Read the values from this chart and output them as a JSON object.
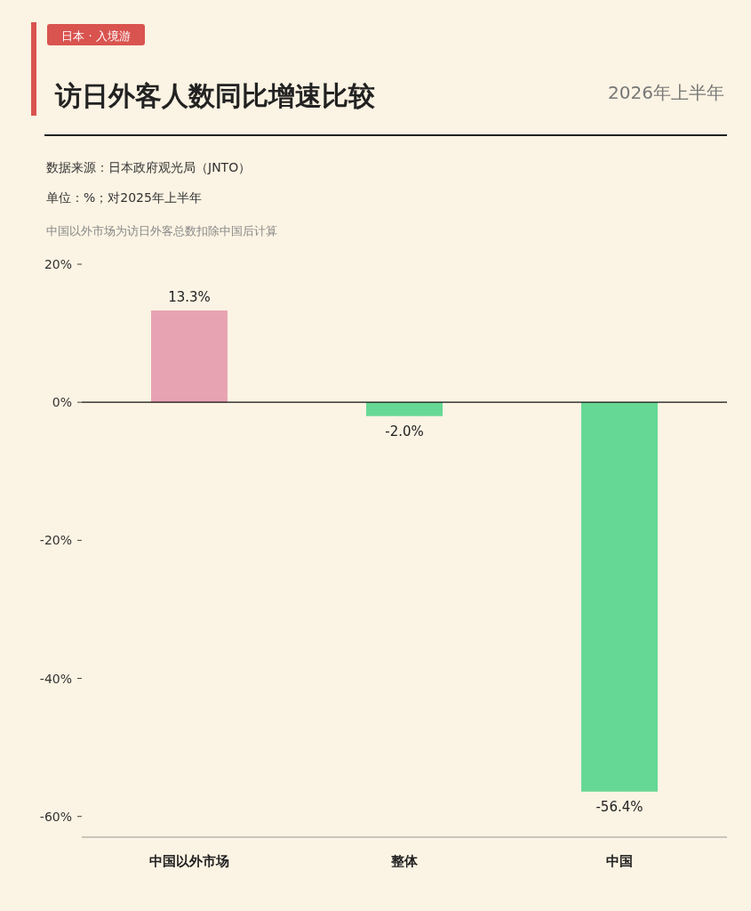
{
  "chart_data": {
    "type": "bar",
    "title": "访日外客人数同比增速比较",
    "subtitle": "2026年上半年",
    "annotations": [
      "日本 · 入境游",
      "数据来源：日本政府观光局（JNTO）",
      "单位：%；对2025年上半年",
      "中国以外市场为访日外客总数扣除中国后计算"
    ],
    "categories": [
      "中国以外市场",
      "整体",
      "中国"
    ],
    "values": [
      13.3,
      -2.0,
      -56.4
    ],
    "colors": [
      "#e8a3b3",
      "#66d895",
      "#66d895"
    ],
    "value_labels": [
      "13.3%",
      "-2.0%",
      "-56.4%"
    ],
    "ylim": [
      -63,
      20
    ],
    "yticks": [
      {
        "value": 20,
        "label": "20%"
      },
      {
        "value": 0,
        "label": "0%"
      },
      {
        "value": -20,
        "label": "-20%"
      },
      {
        "value": -40,
        "label": "-40%"
      },
      {
        "value": -60,
        "label": "-60%"
      }
    ]
  }
}
